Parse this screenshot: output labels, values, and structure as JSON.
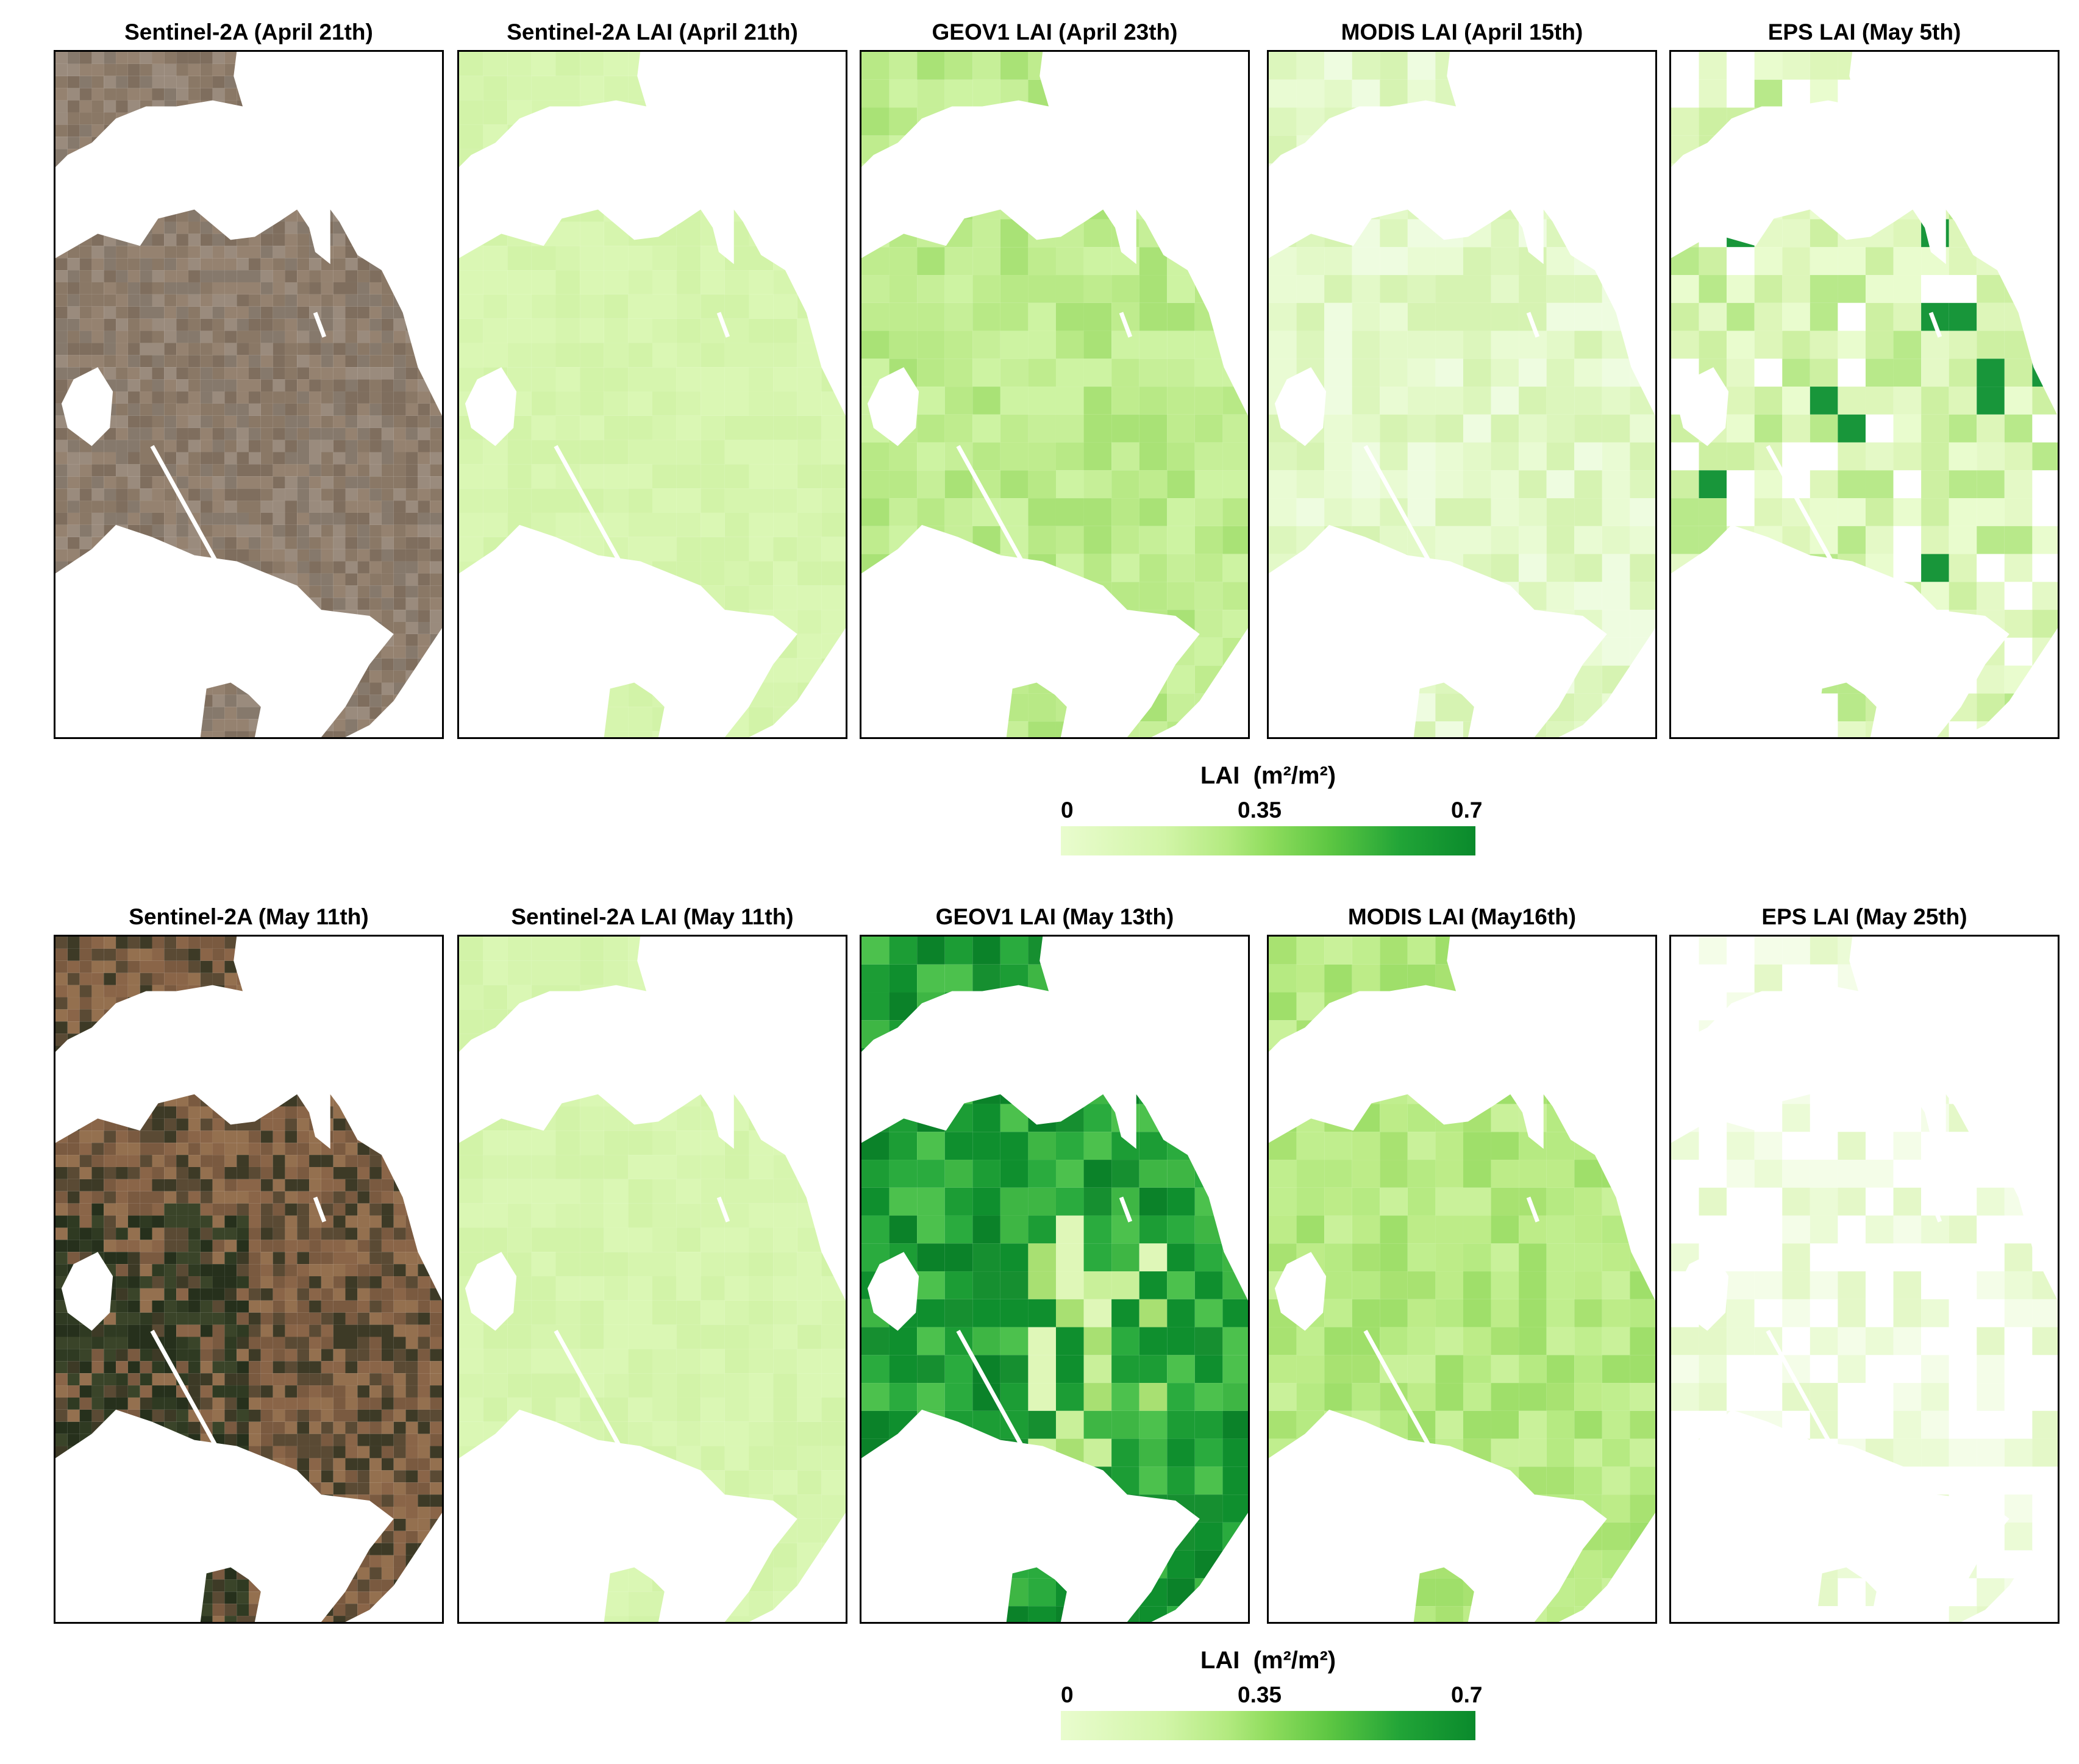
{
  "rows": [
    {
      "panels": [
        {
          "title": "Sentinel-2A (April 21th)",
          "kind": "rgb",
          "palette": "dry"
        },
        {
          "title": "Sentinel-2A LAI (April 21th)",
          "kind": "lai",
          "level": "uniform_low"
        },
        {
          "title": "GEOV1 LAI (April 23th)",
          "kind": "lai",
          "level": "low"
        },
        {
          "title": "MODIS LAI (April 15th)",
          "kind": "lai",
          "level": "very_low"
        },
        {
          "title": "EPS LAI (May 5th)",
          "kind": "lai",
          "level": "patchy"
        }
      ],
      "legend": {
        "title": "LAI",
        "unit": "(m²/m²)",
        "ticks": [
          "0",
          "0.35",
          "0.7"
        ]
      }
    },
    {
      "panels": [
        {
          "title": "Sentinel-2A (May 11th)",
          "kind": "rgb",
          "palette": "green"
        },
        {
          "title": "Sentinel-2A LAI (May 11th)",
          "kind": "lai",
          "level": "uniform_low"
        },
        {
          "title": "GEOV1 LAI (May 13th)",
          "kind": "lai",
          "level": "high"
        },
        {
          "title": "MODIS LAI (May16th)",
          "kind": "lai",
          "level": "moderate"
        },
        {
          "title": "EPS LAI (May 25th)",
          "kind": "lai",
          "level": "sparse"
        }
      ],
      "legend": {
        "title": "LAI",
        "unit": "(m²/m²)",
        "ticks": [
          "0",
          "0.35",
          "0.7"
        ]
      }
    }
  ],
  "colorbar": {
    "min": 0,
    "mid": 0.35,
    "max": 0.7,
    "colors": [
      "#e9fcce",
      "#d2f5a8",
      "#b3ea80",
      "#90dd5e",
      "#5cc642",
      "#21a437",
      "#0a8a2c"
    ]
  }
}
